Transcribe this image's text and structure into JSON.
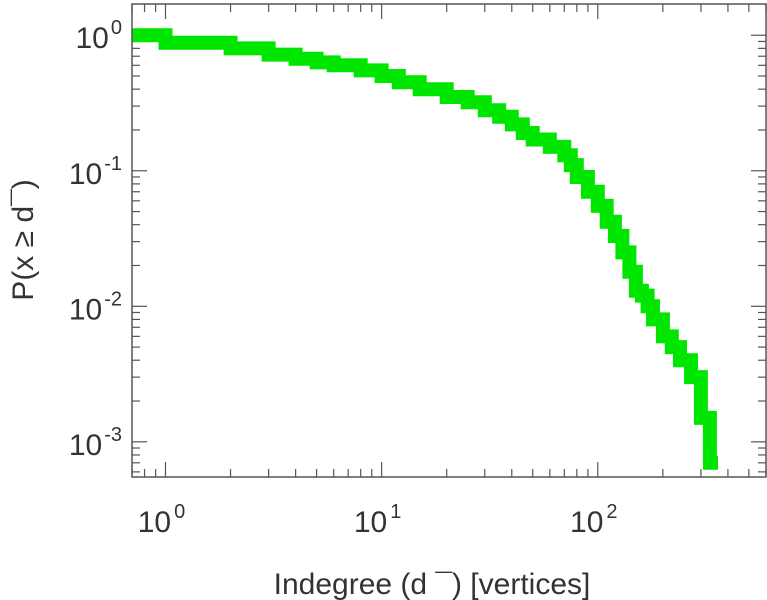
{
  "chart_data": {
    "type": "line",
    "step": true,
    "xscale": "log",
    "yscale": "log",
    "xlim": [
      0.7,
      600
    ],
    "ylim": [
      0.00055,
      1.7
    ],
    "xlabel": "Indegree (d ¯) [vertices]",
    "ylabel": "P(x ≥ d¯)",
    "x_ticks": [
      {
        "base": "10",
        "exp": "0",
        "value": 1
      },
      {
        "base": "10",
        "exp": "1",
        "value": 10
      },
      {
        "base": "10",
        "exp": "2",
        "value": 100
      }
    ],
    "y_ticks": [
      {
        "base": "10",
        "exp": "0",
        "value": 1
      },
      {
        "base": "10",
        "exp": "-1",
        "value": 0.1
      },
      {
        "base": "10",
        "exp": "-2",
        "value": 0.01
      },
      {
        "base": "10",
        "exp": "-3",
        "value": 0.001
      }
    ],
    "grid": false,
    "color": "#00e600",
    "series": [
      {
        "x": [
          0.7,
          1,
          2,
          3,
          4,
          5,
          6,
          8,
          10,
          12,
          15,
          20,
          25,
          30,
          35,
          40,
          45,
          50,
          60,
          70,
          75,
          80,
          90,
          100,
          110,
          120,
          130,
          140,
          150,
          160,
          170,
          180,
          200,
          220,
          240,
          270,
          300,
          330,
          360
        ],
        "y": [
          1.0,
          0.88,
          0.8,
          0.72,
          0.67,
          0.63,
          0.6,
          0.55,
          0.5,
          0.45,
          0.4,
          0.35,
          0.32,
          0.28,
          0.25,
          0.22,
          0.19,
          0.17,
          0.15,
          0.13,
          0.11,
          0.09,
          0.07,
          0.055,
          0.042,
          0.033,
          0.025,
          0.018,
          0.013,
          0.012,
          0.01,
          0.008,
          0.006,
          0.005,
          0.004,
          0.003,
          0.0015,
          0.0007,
          0.0007
        ]
      }
    ]
  }
}
